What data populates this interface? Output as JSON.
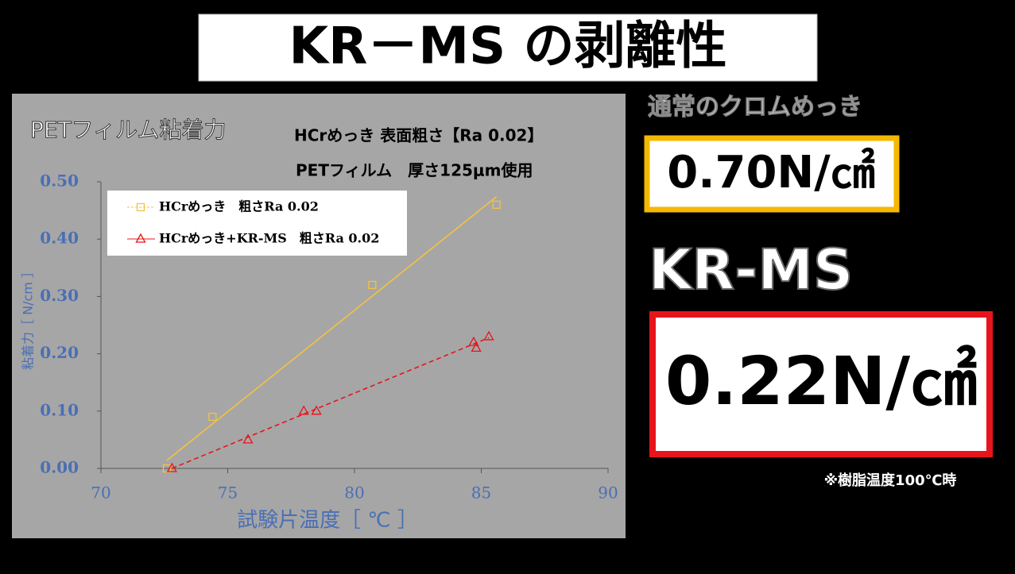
{
  "title": "KR－MS の剥離性",
  "chart_data": {
    "type": "scatter",
    "title": "PETフィルム粘着力",
    "annotations": [
      "HCrめっき  表面粗さ【Ra 0.02】",
      "PETフィルム　厚さ125μm使用"
    ],
    "x_label": "試験片温度［ ℃ ］",
    "y_label": "粘着力［ N/cm ］",
    "xlim": [
      70,
      90
    ],
    "xticks": [
      70,
      75,
      80,
      85,
      90
    ],
    "ylim": [
      0,
      0.5
    ],
    "yticks": [
      {
        "value": 0,
        "label": "0.00"
      },
      {
        "value": 0.1,
        "label": "0.10"
      },
      {
        "value": 0.2,
        "label": "0.20"
      },
      {
        "value": 0.3,
        "label": "0.30"
      },
      {
        "value": 0.4,
        "label": "0.40"
      },
      {
        "value": 0.5,
        "label": "0.50"
      }
    ],
    "series": [
      {
        "name": "HCrめっき　粗さRa 0.02",
        "color": "#f5c242",
        "marker": "square",
        "x": [
          72.6,
          74.4,
          80.7,
          85.6
        ],
        "values": [
          0,
          0.09,
          0.32,
          0.46
        ],
        "trendline": {
          "x": [
            72.6,
            85.6
          ],
          "values": [
            0.014,
            0.474
          ],
          "dashed": false
        }
      },
      {
        "name": "HCrめっき+KR-MS　粗さRa 0.02",
        "color": "#e8141b",
        "marker": "triangle",
        "x": [
          72.8,
          75.8,
          78.0,
          78.5,
          84.7,
          84.8,
          85.3
        ],
        "values": [
          0,
          0.05,
          0.1,
          0.1,
          0.22,
          0.21,
          0.23
        ],
        "trendline": {
          "x": [
            72.8,
            85.3
          ],
          "values": [
            0,
            0.228
          ],
          "dashed": true
        }
      }
    ]
  },
  "panels": {
    "normal_label": "通常のクロムめっき",
    "normal_value": "0.70N/㎠",
    "krms_label": "KR-MS",
    "krms_value": "0.22N/㎠",
    "note": "※樹脂温度100℃時"
  }
}
